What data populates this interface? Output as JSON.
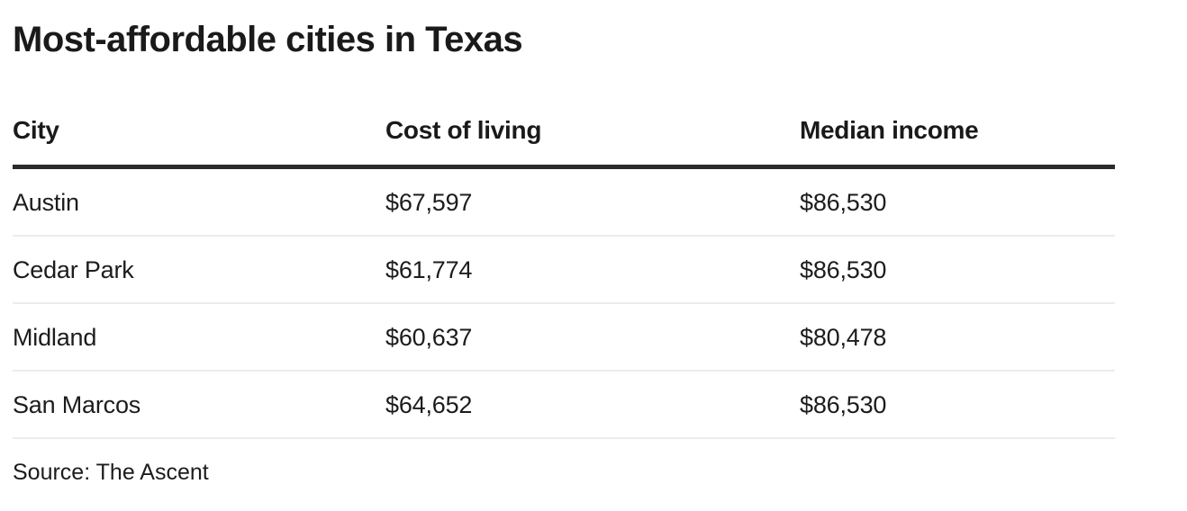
{
  "figure": {
    "title": "Most-affordable cities in Texas",
    "source": "Source: The Ascent"
  },
  "table": {
    "columns": [
      "City",
      "Cost of living",
      "Median income"
    ],
    "rows": [
      {
        "city": "Austin",
        "cost": "$67,597",
        "income": "$86,530"
      },
      {
        "city": "Cedar Park",
        "cost": "$61,774",
        "income": "$86,530"
      },
      {
        "city": "Midland",
        "cost": "$60,637",
        "income": "$80,478"
      },
      {
        "city": "San Marcos",
        "cost": "$64,652",
        "income": "$86,530"
      }
    ]
  },
  "chart_data": {
    "type": "table",
    "title": "Most-affordable cities in Texas",
    "columns": [
      "City",
      "Cost of living",
      "Median income"
    ],
    "categories": [
      "Austin",
      "Cedar Park",
      "Midland",
      "San Marcos"
    ],
    "series": [
      {
        "name": "Cost of living",
        "values": [
          67597,
          61774,
          60637,
          64652
        ]
      },
      {
        "name": "Median income",
        "values": [
          86530,
          86530,
          80478,
          86530
        ]
      }
    ],
    "rows": [
      [
        "Austin",
        "$67,597",
        "$86,530"
      ],
      [
        "Cedar Park",
        "$61,774",
        "$86,530"
      ],
      [
        "Midland",
        "$60,637",
        "$80,478"
      ],
      [
        "San Marcos",
        "$64,652",
        "$86,530"
      ]
    ],
    "source": "Source: The Ascent",
    "legend_position": "none",
    "grid": "horizontal-row-dividers"
  },
  "colors": {
    "background": "#ffffff",
    "text": "#1a1a1a",
    "header_rule": "#2b2b2b",
    "row_divider": "#ececec"
  }
}
